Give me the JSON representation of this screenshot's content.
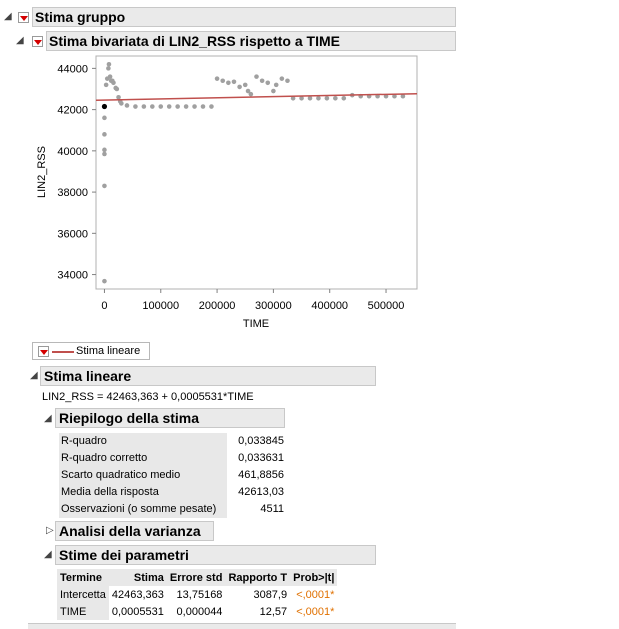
{
  "group": {
    "title": "Stima gruppo"
  },
  "bivariate": {
    "title": "Stima bivariata di LIN2_RSS rispetto a TIME"
  },
  "chart_data": {
    "type": "scatter",
    "xlabel": "TIME",
    "ylabel": "LIN2_RSS",
    "xlim": [
      -15000,
      555000
    ],
    "ylim": [
      33300,
      44600
    ],
    "x_ticks": [
      "0",
      "100000",
      "200000",
      "300000",
      "400000",
      "500000"
    ],
    "y_ticks": [
      "34000",
      "36000",
      "38000",
      "40000",
      "42000",
      "44000"
    ],
    "point_color": "#a0a0a0",
    "line_color": "#c0504d",
    "fit_line": {
      "intercept": 42463.363,
      "slope": 0.0005531
    },
    "highlighted_point": {
      "x": 0,
      "y": 42150,
      "color": "#000000"
    },
    "points": [
      [
        0,
        33680
      ],
      [
        0,
        38300
      ],
      [
        0,
        39850
      ],
      [
        0,
        40050
      ],
      [
        0,
        40800
      ],
      [
        0,
        41600
      ],
      [
        0,
        42150
      ],
      [
        3000,
        43200
      ],
      [
        5000,
        43500
      ],
      [
        7000,
        44000
      ],
      [
        8000,
        44200
      ],
      [
        10000,
        43600
      ],
      [
        12000,
        43400
      ],
      [
        14000,
        43400
      ],
      [
        16000,
        43300
      ],
      [
        20000,
        43050
      ],
      [
        22000,
        43000
      ],
      [
        25000,
        42600
      ],
      [
        28000,
        42400
      ],
      [
        30000,
        42300
      ],
      [
        40000,
        42200
      ],
      [
        55000,
        42150
      ],
      [
        70000,
        42150
      ],
      [
        85000,
        42150
      ],
      [
        100000,
        42150
      ],
      [
        115000,
        42150
      ],
      [
        130000,
        42150
      ],
      [
        145000,
        42150
      ],
      [
        160000,
        42150
      ],
      [
        175000,
        42150
      ],
      [
        190000,
        42150
      ],
      [
        200000,
        43500
      ],
      [
        210000,
        43400
      ],
      [
        220000,
        43300
      ],
      [
        230000,
        43350
      ],
      [
        240000,
        43100
      ],
      [
        250000,
        43200
      ],
      [
        255000,
        42900
      ],
      [
        260000,
        42750
      ],
      [
        270000,
        43600
      ],
      [
        280000,
        43400
      ],
      [
        290000,
        43300
      ],
      [
        300000,
        42900
      ],
      [
        305000,
        43200
      ],
      [
        315000,
        43500
      ],
      [
        325000,
        43400
      ],
      [
        335000,
        42550
      ],
      [
        350000,
        42550
      ],
      [
        365000,
        42550
      ],
      [
        380000,
        42550
      ],
      [
        395000,
        42550
      ],
      [
        410000,
        42550
      ],
      [
        425000,
        42550
      ],
      [
        440000,
        42700
      ],
      [
        455000,
        42650
      ],
      [
        470000,
        42650
      ],
      [
        485000,
        42650
      ],
      [
        500000,
        42650
      ],
      [
        515000,
        42650
      ],
      [
        530000,
        42650
      ]
    ]
  },
  "legend": {
    "label": "Stima lineare"
  },
  "linear_fit": {
    "title": "Stima lineare",
    "equation": "LIN2_RSS = 42463,363 + 0,0005531*TIME"
  },
  "summary": {
    "title": "Riepilogo della stima",
    "rows": [
      {
        "label": "R-quadro",
        "value": "0,033845"
      },
      {
        "label": "R-quadro corretto",
        "value": "0,033631"
      },
      {
        "label": "Scarto quadratico medio",
        "value": "461,8856"
      },
      {
        "label": "Media della risposta",
        "value": "42613,03"
      },
      {
        "label": "Osservazioni (o somme pesate)",
        "value": "4511"
      }
    ]
  },
  "anova": {
    "title": "Analisi della varianza"
  },
  "params": {
    "title": "Stime dei parametri",
    "headers": [
      "Termine",
      "Stima",
      "Errore std",
      "Rapporto T",
      "Prob>|t|"
    ],
    "rows": [
      [
        "Intercetta",
        "42463,363",
        "13,75168",
        "3087,9",
        "<,0001*"
      ],
      [
        "TIME",
        "0,0005531",
        "0,000044",
        "12,57",
        "<,0001*"
      ]
    ]
  }
}
